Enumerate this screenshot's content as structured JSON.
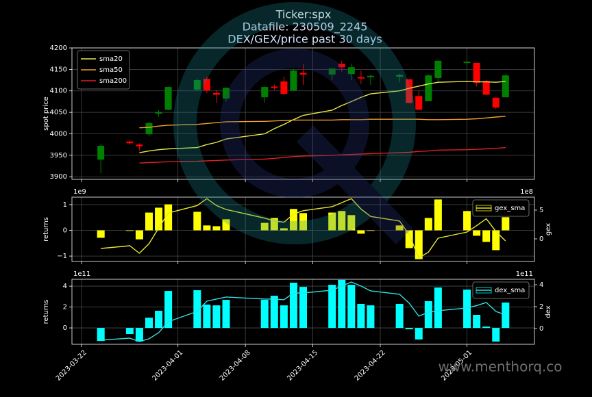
{
  "title": [
    "Ticker:spx",
    "Datafile: 230509_2245",
    "DEX/GEX/price past 30 days"
  ],
  "watermark": "www.menthorq.co",
  "chart_data": [
    {
      "type": "candlestick",
      "ylabel": "spot price",
      "x": [
        "2023-03-24",
        "2023-03-27",
        "2023-03-28",
        "2023-03-29",
        "2023-03-30",
        "2023-03-31",
        "2023-04-03",
        "2023-04-04",
        "2023-04-05",
        "2023-04-06",
        "2023-04-10",
        "2023-04-11",
        "2023-04-12",
        "2023-04-13",
        "2023-04-14",
        "2023-04-17",
        "2023-04-18",
        "2023-04-19",
        "2023-04-20",
        "2023-04-21",
        "2023-04-24",
        "2023-04-25",
        "2023-04-26",
        "2023-04-27",
        "2023-04-28",
        "2023-05-01",
        "2023-05-02",
        "2023-05-03",
        "2023-05-04",
        "2023-05-05"
      ],
      "open": [
        3940,
        3982,
        3975,
        3999,
        4047,
        4056,
        4103,
        4128,
        4095,
        4082,
        4085,
        4110,
        4122,
        4101,
        4142,
        4138,
        4163,
        4139,
        4132,
        4133,
        4133,
        4127,
        4088,
        4076,
        4130,
        4166,
        4165,
        4123,
        4084,
        4085
      ],
      "high": [
        3975,
        3985,
        3978,
        4027,
        4055,
        4110,
        4128,
        4133,
        4103,
        4108,
        4110,
        4115,
        4133,
        4151,
        4163,
        4152,
        4170,
        4163,
        4147,
        4138,
        4140,
        4127,
        4100,
        4138,
        4170,
        4170,
        4165,
        4126,
        4085,
        4138
      ],
      "low": [
        3908,
        3975,
        3960,
        3995,
        4040,
        4055,
        4100,
        4095,
        4072,
        4075,
        4073,
        4102,
        4090,
        4100,
        4114,
        4125,
        4145,
        4125,
        4116,
        4114,
        4120,
        4071,
        4055,
        4076,
        4120,
        4160,
        4110,
        4090,
        4058,
        4085
      ],
      "close": [
        3972,
        3978,
        3971,
        4025,
        4051,
        4109,
        4125,
        4101,
        4091,
        4107,
        4109,
        4108,
        4093,
        4147,
        4138,
        4152,
        4155,
        4155,
        4130,
        4135,
        4137,
        4072,
        4056,
        4136,
        4170,
        4168,
        4119,
        4091,
        4061,
        4136
      ],
      "up_color": "#008000",
      "down_color": "#ff0000",
      "series": [
        {
          "name": "sma20",
          "color": "#e8e84a",
          "values": [
            null,
            null,
            3956,
            3960,
            3963,
            3965,
            3968,
            3975,
            3980,
            3988,
            4000,
            4012,
            4022,
            4033,
            4043,
            4055,
            4066,
            4075,
            4085,
            4093,
            4100,
            4106,
            4111,
            4116,
            4120,
            4122,
            4121,
            4121,
            4120,
            4122
          ]
        },
        {
          "name": "sma50",
          "color": "#f0a030",
          "values": [
            null,
            null,
            4014,
            4015,
            4018,
            4020,
            4022,
            4024,
            4026,
            4028,
            4029,
            4030,
            4031,
            4032,
            4032,
            4032,
            4033,
            4033,
            4033,
            4034,
            4034,
            4034,
            4034,
            4033,
            4033,
            4034,
            4035,
            4037,
            4039,
            4041
          ]
        },
        {
          "name": "sma200",
          "color": "#e02020",
          "values": [
            null,
            null,
            3932,
            3933,
            3934,
            3935,
            3936,
            3937,
            3938,
            3939,
            3941,
            3943,
            3945,
            3947,
            3948,
            3950,
            3951,
            3952,
            3953,
            3954,
            3956,
            3957,
            3959,
            3960,
            3962,
            3963,
            3964,
            3965,
            3966,
            3968
          ]
        }
      ],
      "xlim": [
        "2023-03-21",
        "2023-05-08"
      ],
      "xticks": [
        "2023-03-22",
        "2023-04-01",
        "2023-04-08",
        "2023-04-15",
        "2023-04-22",
        "2023-05-01"
      ],
      "ylim": [
        3894,
        4200
      ],
      "yticks": [
        3900,
        3950,
        4000,
        4050,
        4100,
        4150,
        4200
      ],
      "grid": true,
      "legend_loc": "upper left"
    },
    {
      "type": "bar",
      "ylabel": "returns",
      "y2label": "gex",
      "y_offset_label": "1e9",
      "y2_offset_label": "1e8",
      "x": [
        "2023-03-24",
        "2023-03-27",
        "2023-03-28",
        "2023-03-29",
        "2023-03-30",
        "2023-03-31",
        "2023-04-03",
        "2023-04-04",
        "2023-04-05",
        "2023-04-06",
        "2023-04-10",
        "2023-04-11",
        "2023-04-12",
        "2023-04-13",
        "2023-04-14",
        "2023-04-17",
        "2023-04-18",
        "2023-04-19",
        "2023-04-20",
        "2023-04-21",
        "2023-04-24",
        "2023-04-25",
        "2023-04-26",
        "2023-04-27",
        "2023-04-28",
        "2023-05-01",
        "2023-05-02",
        "2023-05-03",
        "2023-05-04",
        "2023-05-05"
      ],
      "values": [
        -0.29,
        -0.02,
        -0.35,
        0.69,
        0.88,
        1.01,
        0.72,
        0.19,
        0.16,
        0.43,
        0.29,
        0.48,
        0.08,
        0.83,
        0.67,
        0.69,
        0.75,
        0.59,
        -0.13,
        0,
        0.19,
        -0.69,
        -1.12,
        0.48,
        1.2,
        0.75,
        -0.21,
        -0.45,
        -0.77,
        0.51
      ],
      "color": "#ffff00",
      "series": [
        {
          "name": "gex_sma",
          "color": "#e8e830",
          "axis": "y2",
          "values": [
            -1.67,
            -1.19,
            -2.5,
            -0.83,
            1.9,
            4.5,
            5.8,
            7.0,
            5.8,
            5.1,
            3.6,
            3.1,
            2.9,
            4.3,
            4.9,
            5.6,
            6.3,
            7.0,
            5.2,
            3.9,
            3.1,
            0.71,
            -3.3,
            -2.3,
            0.12,
            1.19,
            2.3,
            3.5,
            1.3,
            -0.36
          ]
        }
      ],
      "xlim": [
        "2023-03-21",
        "2023-05-08"
      ],
      "xticks": [
        "2023-03-22",
        "2023-04-01",
        "2023-04-08",
        "2023-04-15",
        "2023-04-22",
        "2023-05-01"
      ],
      "ylim": [
        -1.21,
        1.29
      ],
      "yticks": [
        {
          "value": -1,
          "label": "−1"
        },
        0,
        1
      ],
      "y2lim": [
        -3.93,
        7.26
      ],
      "y2ticks": [
        0,
        5
      ],
      "grid": true,
      "legend_loc": "upper right"
    },
    {
      "type": "bar",
      "ylabel": "returns",
      "y2label": "dex",
      "y_offset_label": "1e11",
      "y2_offset_label": "1e11",
      "x": [
        "2023-03-24",
        "2023-03-27",
        "2023-03-28",
        "2023-03-29",
        "2023-03-30",
        "2023-03-31",
        "2023-04-03",
        "2023-04-04",
        "2023-04-05",
        "2023-04-06",
        "2023-04-10",
        "2023-04-11",
        "2023-04-12",
        "2023-04-13",
        "2023-04-14",
        "2023-04-17",
        "2023-04-18",
        "2023-04-19",
        "2023-04-20",
        "2023-04-21",
        "2023-04-24",
        "2023-04-25",
        "2023-04-26",
        "2023-04-27",
        "2023-04-28",
        "2023-05-01",
        "2023-05-02",
        "2023-05-03",
        "2023-05-04",
        "2023-05-05"
      ],
      "values": [
        -1.25,
        -0.59,
        -1.31,
        0.98,
        1.64,
        3.54,
        3.61,
        2.23,
        2.16,
        2.69,
        2.69,
        3.08,
        2.16,
        4.33,
        3.93,
        4.13,
        4.6,
        4.13,
        2.3,
        2.16,
        2.3,
        -0.13,
        -1.11,
        2.56,
        3.87,
        3.67,
        1.25,
        0.13,
        -1.31,
        2.43
      ],
      "color": "#00ffff",
      "series": [
        {
          "name": "dex_sma",
          "color": "#30e0e0",
          "axis": "y2",
          "values": [
            -1.06,
            -0.88,
            -1.19,
            -0.94,
            -0.38,
            0.63,
            1.56,
            2.5,
            2.69,
            2.88,
            2.69,
            2.69,
            2.63,
            3.25,
            3.25,
            3.5,
            3.88,
            4.25,
            3.88,
            3.44,
            3.13,
            2.31,
            1.13,
            1.5,
            1.63,
            1.88,
            2.1,
            2.38,
            1.56,
            1.25
          ]
        }
      ],
      "xlim": [
        "2023-03-21",
        "2023-05-08"
      ],
      "xticks": [
        "2023-03-22",
        "2023-04-01",
        "2023-04-08",
        "2023-04-15",
        "2023-04-22",
        "2023-05-01"
      ],
      "ylim": [
        -1.57,
        4.66
      ],
      "yticks": [
        0,
        2,
        4
      ],
      "y2lim": [
        -1.44,
        4.5
      ],
      "y2ticks": [
        0,
        2,
        4
      ],
      "grid": true,
      "legend_loc": "upper right"
    }
  ]
}
